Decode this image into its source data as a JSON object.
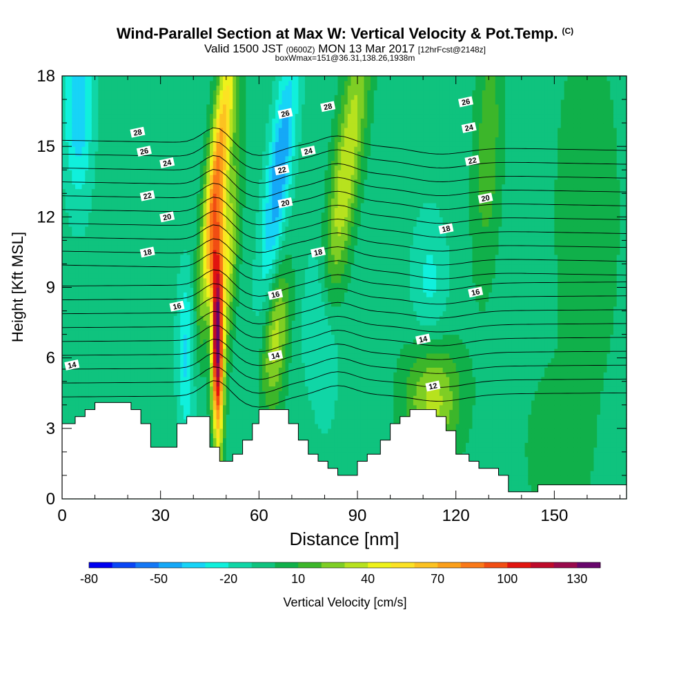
{
  "header": {
    "title": "Wind-Parallel Section at Max W: Vertical Velocity & Pot.Temp.",
    "title_tag": "(C)",
    "subtitle_main": "Valid 1500 JST",
    "subtitle_utc": "(0600Z)",
    "subtitle_date": "MON 13 Mar 2017",
    "subtitle_fcst": "[12hrFcst@2148z]",
    "subtitle2": "boxWmax=151@36.31,138.26,1938m"
  },
  "chart_data": {
    "type": "heatmap",
    "xlabel": "Distance [nm]",
    "ylabel": "Height [Kft MSL]",
    "xlim": [
      0,
      172
    ],
    "ylim": [
      0,
      18
    ],
    "x_ticks": [
      0,
      30,
      60,
      90,
      120,
      150
    ],
    "y_ticks": [
      0,
      3,
      6,
      9,
      12,
      15,
      18
    ],
    "colorbar": {
      "label": "Vertical Velocity [cm/s]",
      "tick_labels": [
        "-80",
        "-50",
        "-20",
        "10",
        "40",
        "70",
        "100",
        "130"
      ],
      "levels": [
        -80,
        -70,
        -60,
        -50,
        -40,
        -30,
        -20,
        -10,
        0,
        10,
        20,
        30,
        40,
        50,
        60,
        70,
        80,
        90,
        100,
        110,
        120,
        130,
        140
      ],
      "colors": [
        "#0000f0",
        "#0a46f5",
        "#1478f5",
        "#15a8f7",
        "#17d4f7",
        "#10f0dc",
        "#10d6a6",
        "#0fc37e",
        "#10b04a",
        "#3cb62a",
        "#7ece24",
        "#b7e21e",
        "#eef21a",
        "#fce223",
        "#fcc221",
        "#fb9f1a",
        "#fa7918",
        "#f14d13",
        "#e1140f",
        "#be0a2a",
        "#990a4c",
        "#68066c"
      ]
    },
    "terrain_kft": [
      [
        0,
        3.2
      ],
      [
        4,
        3.2
      ],
      [
        4,
        3.5
      ],
      [
        7,
        3.5
      ],
      [
        7,
        3.8
      ],
      [
        10,
        3.8
      ],
      [
        10,
        4.1
      ],
      [
        21,
        4.1
      ],
      [
        21,
        3.8
      ],
      [
        24,
        3.8
      ],
      [
        24,
        3.2
      ],
      [
        27,
        3.2
      ],
      [
        27,
        2.2
      ],
      [
        35,
        2.2
      ],
      [
        35,
        3.2
      ],
      [
        38,
        3.2
      ],
      [
        38,
        3.5
      ],
      [
        45,
        3.5
      ],
      [
        45,
        2.2
      ],
      [
        48,
        2.2
      ],
      [
        48,
        1.6
      ],
      [
        52,
        1.6
      ],
      [
        52,
        1.9
      ],
      [
        55,
        1.9
      ],
      [
        55,
        2.5
      ],
      [
        58,
        2.5
      ],
      [
        58,
        3.2
      ],
      [
        60,
        3.2
      ],
      [
        60,
        3.8
      ],
      [
        69,
        3.8
      ],
      [
        69,
        3.2
      ],
      [
        72,
        3.2
      ],
      [
        72,
        2.5
      ],
      [
        75,
        2.5
      ],
      [
        75,
        1.9
      ],
      [
        78,
        1.9
      ],
      [
        78,
        1.6
      ],
      [
        81,
        1.6
      ],
      [
        81,
        1.3
      ],
      [
        84,
        1.3
      ],
      [
        84,
        1.0
      ],
      [
        90,
        1.0
      ],
      [
        90,
        1.6
      ],
      [
        93,
        1.6
      ],
      [
        93,
        1.9
      ],
      [
        97,
        1.9
      ],
      [
        97,
        2.5
      ],
      [
        100,
        2.5
      ],
      [
        100,
        3.2
      ],
      [
        103,
        3.2
      ],
      [
        103,
        3.5
      ],
      [
        106,
        3.5
      ],
      [
        106,
        3.8
      ],
      [
        114,
        3.8
      ],
      [
        114,
        3.5
      ],
      [
        117,
        3.5
      ],
      [
        117,
        2.9
      ],
      [
        120,
        2.9
      ],
      [
        120,
        1.9
      ],
      [
        124,
        1.9
      ],
      [
        124,
        1.6
      ],
      [
        127,
        1.6
      ],
      [
        127,
        1.3
      ],
      [
        133,
        1.3
      ],
      [
        133,
        1.0
      ],
      [
        136,
        1.0
      ],
      [
        136,
        0.3
      ],
      [
        145,
        0.3
      ],
      [
        145,
        0.6
      ],
      [
        172,
        0.6
      ]
    ],
    "theta_labels": [
      {
        "x": 3,
        "y": 5.7,
        "label": "14"
      },
      {
        "x": 65,
        "y": 6.1,
        "label": "14"
      },
      {
        "x": 110,
        "y": 6.8,
        "label": "14"
      },
      {
        "x": 113,
        "y": 4.8,
        "label": "12"
      },
      {
        "x": 35,
        "y": 8.2,
        "label": "16"
      },
      {
        "x": 65,
        "y": 8.7,
        "label": "16"
      },
      {
        "x": 126,
        "y": 8.8,
        "label": "16"
      },
      {
        "x": 26,
        "y": 10.5,
        "label": "18"
      },
      {
        "x": 78,
        "y": 10.5,
        "label": "18"
      },
      {
        "x": 117,
        "y": 11.5,
        "label": "18"
      },
      {
        "x": 32,
        "y": 12.0,
        "label": "20"
      },
      {
        "x": 68,
        "y": 12.6,
        "label": "20"
      },
      {
        "x": 129,
        "y": 12.8,
        "label": "20"
      },
      {
        "x": 26,
        "y": 12.9,
        "label": "22"
      },
      {
        "x": 67,
        "y": 14.0,
        "label": "22"
      },
      {
        "x": 125,
        "y": 14.4,
        "label": "22"
      },
      {
        "x": 32,
        "y": 14.3,
        "label": "24"
      },
      {
        "x": 75,
        "y": 14.8,
        "label": "24"
      },
      {
        "x": 124,
        "y": 15.8,
        "label": "24"
      },
      {
        "x": 25,
        "y": 14.8,
        "label": "26"
      },
      {
        "x": 68,
        "y": 16.4,
        "label": "26"
      },
      {
        "x": 123,
        "y": 16.9,
        "label": "26"
      },
      {
        "x": 23,
        "y": 15.6,
        "label": "28"
      },
      {
        "x": 81,
        "y": 16.7,
        "label": "28"
      }
    ]
  }
}
